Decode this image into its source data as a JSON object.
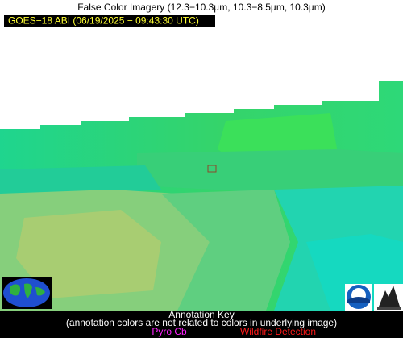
{
  "header": {
    "title": "False Color Imagery (12.3−10.3µm, 10.3−8.5µm, 10.3µm)",
    "satellite_label": "GOES−18 ABI (06/19/2025 − 09:43:30 UTC)"
  },
  "annotation_key": {
    "title": "Annotation Key",
    "note": "(annotation colors are not related to colors in underlying image)",
    "items": [
      "Pyro Cb",
      "Wildfire Detection"
    ]
  }
}
